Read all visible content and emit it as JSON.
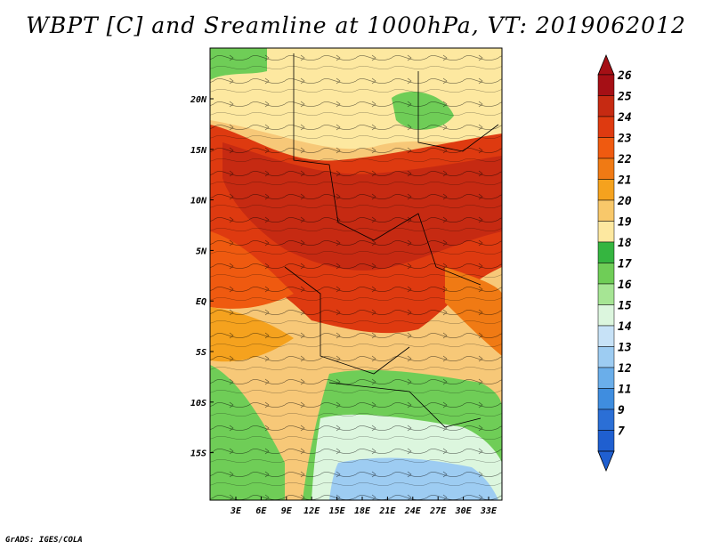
{
  "title": "WBPT [C] and Sreamline at 1000hPa, VT: 2019062012",
  "credit": "GrADS: IGES/COLA",
  "map": {
    "lon_labels": [
      "3E",
      "6E",
      "9E",
      "12E",
      "15E",
      "18E",
      "21E",
      "24E",
      "27E",
      "30E",
      "33E"
    ],
    "lat_labels": [
      "20N",
      "15N",
      "10N",
      "5N",
      "EQ",
      "5S",
      "10S",
      "15S"
    ]
  },
  "colorbar": {
    "labels": [
      "26",
      "25",
      "24",
      "23",
      "22",
      "21",
      "20",
      "19",
      "18",
      "17",
      "16",
      "15",
      "14",
      "13",
      "12",
      "11",
      "9",
      "7"
    ],
    "colors": [
      "#a50f15",
      "#c62a12",
      "#de3a10",
      "#ef5a10",
      "#f07a14",
      "#f5a21e",
      "#f8c86a",
      "#fde8a0",
      "#35b540",
      "#6fcd57",
      "#a6e594",
      "#dcf6de",
      "#c7e2f7",
      "#9dccf2",
      "#6aaeea",
      "#3f8ddf",
      "#2b6fd6",
      "#1f5fd0"
    ]
  }
}
